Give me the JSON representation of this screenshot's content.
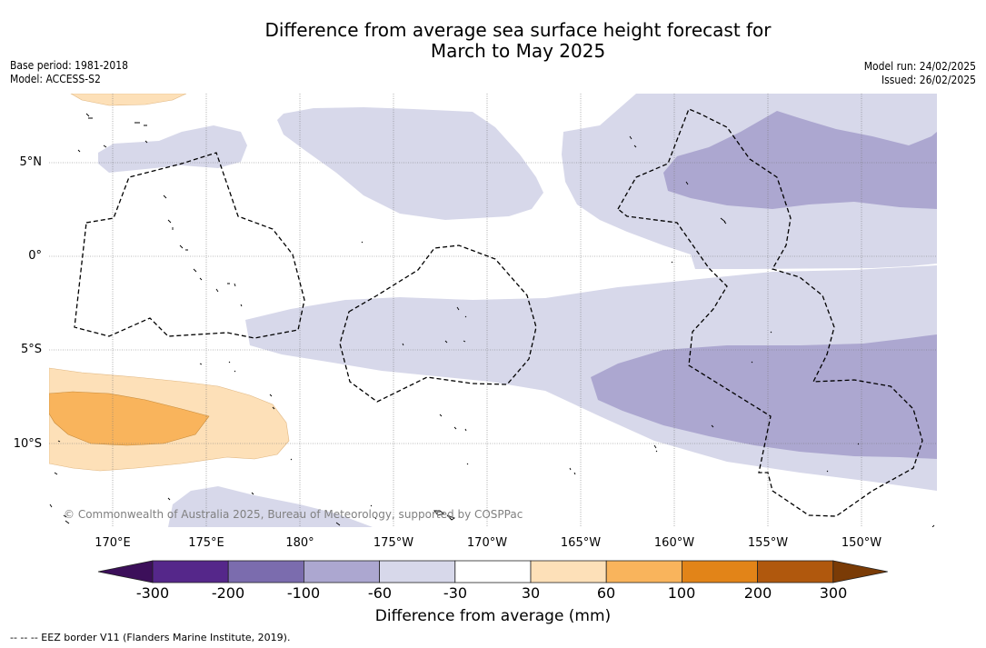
{
  "title": {
    "line1": "Difference from average sea surface height forecast for",
    "line2": "March to May 2025"
  },
  "meta_left": {
    "base_period": "Base period: 1981-2018",
    "model": "Model: ACCESS-S2"
  },
  "meta_right": {
    "model_run": "Model run: 24/02/2025",
    "issued": "Issued: 26/02/2025"
  },
  "map": {
    "lat_labels": [
      "5°N",
      "0°",
      "5°S",
      "10°S"
    ],
    "lon_labels": [
      "170°E",
      "175°E",
      "180°",
      "175°W",
      "170°W",
      "165°W",
      "160°W",
      "155°W",
      "150°W"
    ],
    "copyright": "© Commonwealth of Australia 2025, Bureau of Meteorology, supported by COSPPac"
  },
  "colorbar": {
    "ticks": [
      "-300",
      "-200",
      "-100",
      "-60",
      "-30",
      "30",
      "60",
      "100",
      "200",
      "300"
    ],
    "colors": [
      "#3c0f5a",
      "#55278a",
      "#7b6cae",
      "#aca7d0",
      "#d7d8ea",
      "#ffffff",
      "#fde0b8",
      "#f9b45c",
      "#e28418",
      "#b0580d",
      "#7a3b06"
    ],
    "label": "Difference from average (mm)"
  },
  "legend_note": "-- -- -- EEZ border V11 (Flanders Marine Institute, 2019)."
}
